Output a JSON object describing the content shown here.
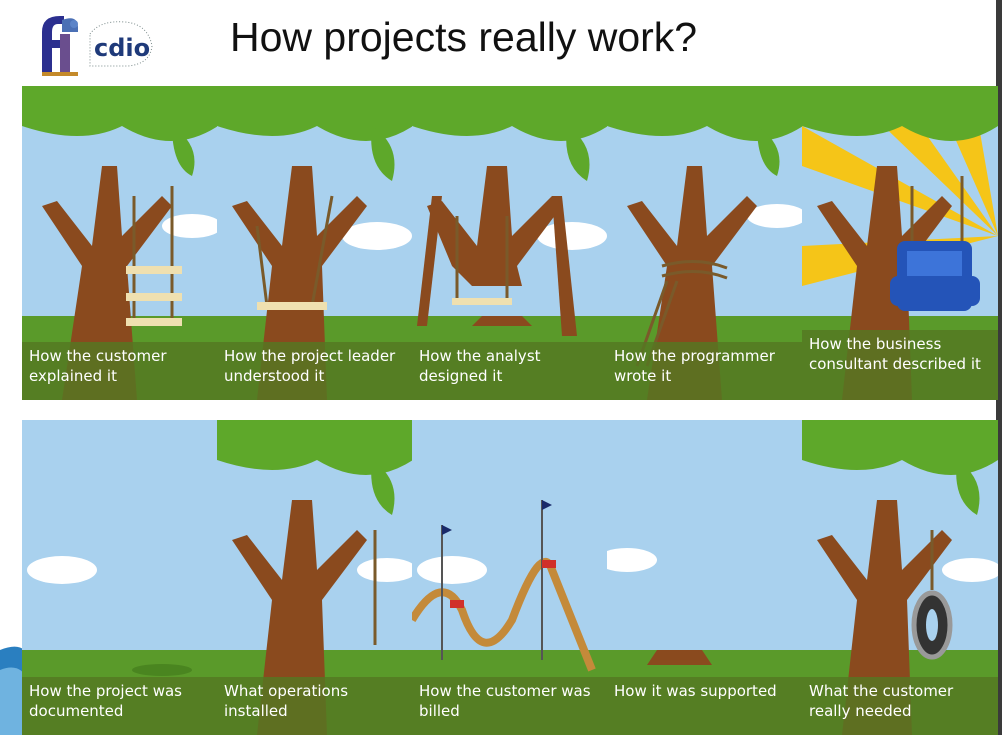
{
  "title": "How projects really work?",
  "logo": {
    "text": "cdio",
    "mark": "fit"
  },
  "panels": [
    {
      "caption": "How the customer explained it"
    },
    {
      "caption": "How the project leader understood it"
    },
    {
      "caption": "How the analyst designed it"
    },
    {
      "caption": "How the programmer wrote it"
    },
    {
      "caption": "How the business consultant described it"
    },
    {
      "caption": "How the project was documented"
    },
    {
      "caption": "What operations installed"
    },
    {
      "caption": "How the customer was billed"
    },
    {
      "caption": "How it was supported"
    },
    {
      "caption": "What the customer really needed"
    }
  ]
}
